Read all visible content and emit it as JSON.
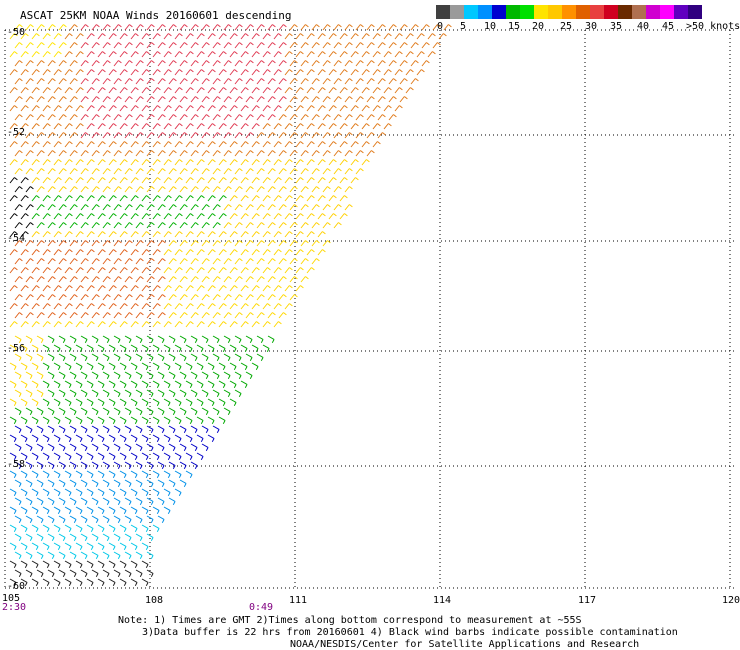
{
  "header": {
    "title": "ASCAT 25KM NOAA Winds 20160601 descending"
  },
  "colorbar": {
    "colors": [
      "#404040",
      "#9a9a9a",
      "#00c8ff",
      "#0090ff",
      "#0000d0",
      "#00b800",
      "#00e000",
      "#ffe400",
      "#ffc800",
      "#ff9000",
      "#e06000",
      "#e84040",
      "#d00020",
      "#6a2a00",
      "#b07050",
      "#d000d0",
      "#ff00ff",
      "#6000c0",
      "#300080"
    ],
    "labels": [
      "0",
      "5",
      "10",
      "15",
      "20",
      "25",
      "30",
      "35",
      "40",
      "45",
      ">50 knots"
    ]
  },
  "axes": {
    "lat_labels": [
      "-50",
      "-52",
      "-54",
      "-56",
      "-58",
      "-60"
    ],
    "lon_labels": [
      "105",
      "108",
      "111",
      "114",
      "117",
      "120"
    ]
  },
  "times": {
    "left": "2:30",
    "middle": "0:49"
  },
  "notes": {
    "line1": "Note: 1) Times are GMT 2)Times along bottom correspond to measurement at ~55S",
    "line2": "3)Data buffer is 22 hrs from 20160601 4) Black wind barbs indicate possible contamination"
  },
  "credit": "NOAA/NESDIS/Center for Satellite Applications and Research"
}
